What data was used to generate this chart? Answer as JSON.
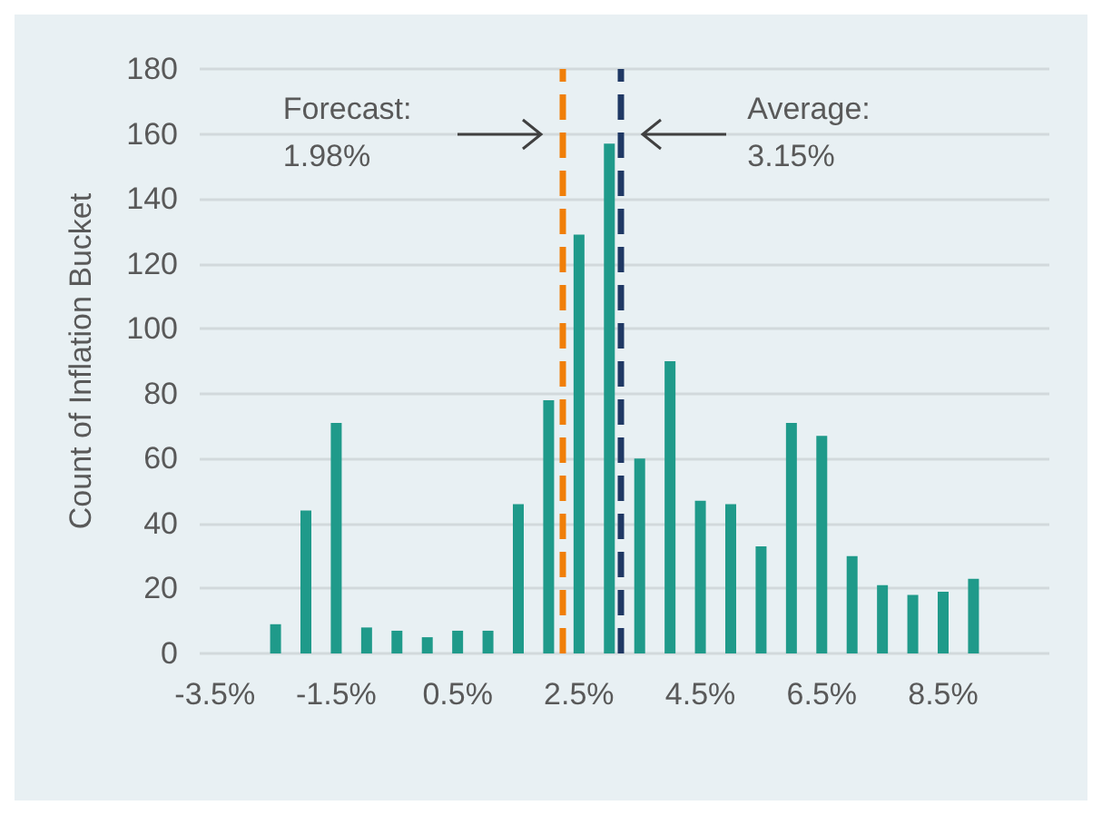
{
  "chart_data": {
    "type": "bar",
    "ylabel": "Count of Inflation Bucket",
    "color": "#1f9a8a",
    "x": [
      -2.5,
      -2.0,
      -1.5,
      -1.0,
      -0.5,
      0.0,
      0.5,
      1.0,
      1.5,
      2.0,
      2.5,
      3.0,
      3.5,
      4.0,
      4.5,
      5.0,
      5.5,
      6.0,
      6.5,
      7.0,
      7.5,
      8.0,
      8.5,
      9.0
    ],
    "values": [
      9,
      44,
      71,
      8,
      7,
      5,
      7,
      7,
      46,
      78,
      129,
      157,
      60,
      90,
      47,
      46,
      33,
      71,
      67,
      30,
      21,
      18,
      19,
      23
    ],
    "xlim": [
      -3.75,
      10.25
    ],
    "xticks": [
      {
        "value": -3.5,
        "label": "-3.5%"
      },
      {
        "value": -1.5,
        "label": "-1.5%"
      },
      {
        "value": 0.5,
        "label": "0.5%"
      },
      {
        "value": 2.5,
        "label": "2.5%"
      },
      {
        "value": 4.5,
        "label": "4.5%"
      },
      {
        "value": 6.5,
        "label": "6.5%"
      },
      {
        "value": 8.5,
        "label": "8.5%"
      }
    ],
    "ylim": [
      0,
      180
    ],
    "yticks": [
      0,
      20,
      40,
      60,
      80,
      100,
      120,
      140,
      160,
      180
    ],
    "grid": "y",
    "ref_lines": [
      {
        "axis": "x",
        "value": 2.23,
        "color": "#f07f09",
        "line_style": "dashed"
      },
      {
        "axis": "x",
        "value": 3.18,
        "color": "#1f3864",
        "line_style": "dashed"
      }
    ],
    "annotations": [
      "Forecast:\n1.98%",
      "Average:\n3.15%"
    ]
  }
}
